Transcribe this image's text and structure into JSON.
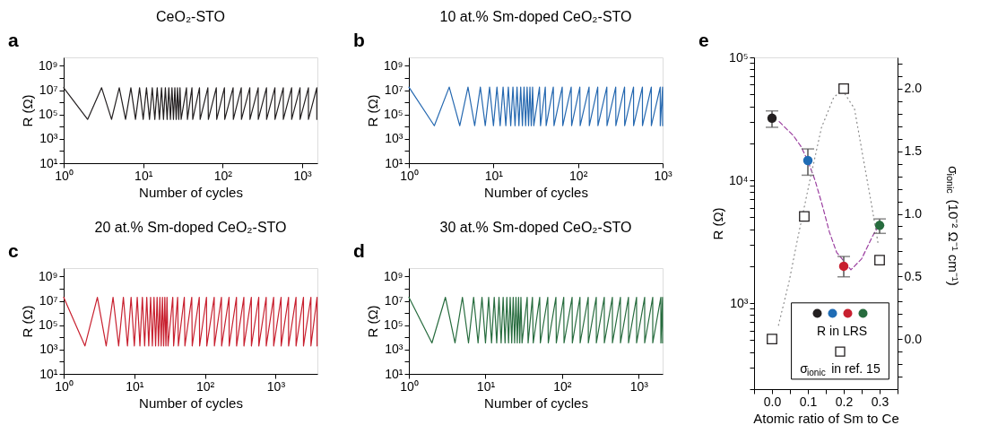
{
  "chart_data": [
    {
      "type": "line",
      "title": "CeO₂-STO",
      "xlabel": "Number of cycles",
      "ylabel": "R (Ω)",
      "annotations": [
        "a"
      ],
      "log": "xy",
      "grid": false,
      "xlim": [
        1,
        1550
      ],
      "ylim": [
        10,
        5000000000
      ],
      "xticks": [
        {
          "value": 1,
          "label": "10⁰"
        },
        {
          "value": 10,
          "label": "10¹"
        },
        {
          "value": 100,
          "label": "10²"
        },
        {
          "value": 1000,
          "label": "10³"
        }
      ],
      "yticks": [
        {
          "value": 10,
          "label": "10¹"
        },
        {
          "value": 100,
          "label": null
        },
        {
          "value": 1000,
          "label": "10³"
        },
        {
          "value": 10000,
          "label": null
        },
        {
          "value": 100000,
          "label": "10⁵"
        },
        {
          "value": 1000000,
          "label": null
        },
        {
          "value": 10000000,
          "label": "10⁷"
        },
        {
          "value": 100000000,
          "label": null
        },
        {
          "value": 1000000000,
          "label": "10⁹"
        }
      ],
      "color": "#231f20",
      "x": [
        1,
        2,
        3,
        4,
        5,
        6,
        7,
        8,
        9,
        10,
        11,
        12,
        13,
        14,
        15,
        16,
        17,
        18,
        19,
        20,
        21,
        22,
        23,
        24,
        25,
        26,
        27,
        28,
        29,
        30,
        35,
        36,
        41,
        42,
        51,
        52,
        65,
        66,
        83,
        84,
        105,
        106,
        135,
        136,
        171,
        172,
        219,
        220,
        279,
        280,
        355,
        356,
        453,
        454,
        577,
        578,
        735,
        736,
        937,
        938,
        1195,
        1196,
        1523,
        1524
      ],
      "values": [
        16000000,
        40000,
        16000000,
        40000,
        16000000,
        40000,
        16000000,
        40000,
        16000000,
        40000,
        16000000,
        40000,
        16000000,
        40000,
        16000000,
        40000,
        16000000,
        40000,
        16000000,
        40000,
        16000000,
        40000,
        16000000,
        40000,
        16000000,
        40000,
        16000000,
        40000,
        16000000,
        40000,
        16000000,
        40000,
        16000000,
        40000,
        16000000,
        40000,
        16000000,
        40000,
        16000000,
        40000,
        16000000,
        40000,
        16000000,
        40000,
        16000000,
        40000,
        16000000,
        40000,
        16000000,
        40000,
        16000000,
        40000,
        16000000,
        40000,
        16000000,
        40000,
        16000000,
        40000,
        16000000,
        40000,
        16000000,
        40000,
        16000000,
        40000
      ]
    },
    {
      "type": "line",
      "title": "10 at.% Sm-doped CeO₂-STO",
      "xlabel": "Number of cycles",
      "ylabel": "R (Ω)",
      "annotations": [
        "b"
      ],
      "log": "xy",
      "grid": false,
      "xlim": [
        1,
        1000
      ],
      "ylim": [
        10,
        5000000000
      ],
      "xticks": [
        {
          "value": 1,
          "label": "10⁰"
        },
        {
          "value": 10,
          "label": "10¹"
        },
        {
          "value": 100,
          "label": "10²"
        },
        {
          "value": 1000,
          "label": "10³"
        }
      ],
      "yticks": [
        {
          "value": 10,
          "label": "10¹"
        },
        {
          "value": 100,
          "label": null
        },
        {
          "value": 1000,
          "label": "10³"
        },
        {
          "value": 10000,
          "label": null
        },
        {
          "value": 100000,
          "label": "10⁵"
        },
        {
          "value": 1000000,
          "label": null
        },
        {
          "value": 10000000,
          "label": "10⁷"
        },
        {
          "value": 100000000,
          "label": null
        },
        {
          "value": 1000000000,
          "label": "10⁹"
        }
      ],
      "color": "#2568b0",
      "x": [
        1,
        2,
        3,
        4,
        5,
        6,
        7,
        8,
        9,
        10,
        11,
        12,
        13,
        14,
        15,
        16,
        17,
        18,
        19,
        20,
        21,
        22,
        23,
        24,
        25,
        26,
        27,
        28,
        29,
        30,
        35,
        36,
        41,
        42,
        51,
        52,
        65,
        66,
        83,
        84,
        105,
        106,
        135,
        136,
        171,
        172,
        219,
        220,
        279,
        280,
        355,
        356,
        453,
        454,
        577,
        578,
        735,
        736,
        937,
        938,
        999,
        1000
      ],
      "values": [
        18000000,
        12000,
        18000000,
        12000,
        18000000,
        12000,
        18000000,
        12000,
        18000000,
        12000,
        18000000,
        12000,
        18000000,
        12000,
        18000000,
        12000,
        18000000,
        12000,
        18000000,
        12000,
        18000000,
        12000,
        18000000,
        12000,
        18000000,
        12000,
        18000000,
        12000,
        18000000,
        12000,
        18000000,
        12000,
        18000000,
        12000,
        18000000,
        12000,
        18000000,
        12000,
        18000000,
        12000,
        18000000,
        12000,
        18000000,
        12000,
        18000000,
        12000,
        18000000,
        12000,
        18000000,
        12000,
        18000000,
        12000,
        18000000,
        12000,
        18000000,
        12000,
        18000000,
        12000,
        18000000,
        12000,
        18000000,
        12000
      ]
    },
    {
      "type": "line",
      "title": "20 at.% Sm-doped CeO₂-STO",
      "xlabel": "Number of cycles",
      "ylabel": "R (Ω)",
      "annotations": [
        "c"
      ],
      "log": "xy",
      "grid": false,
      "xlim": [
        1,
        3900
      ],
      "ylim": [
        10,
        5000000000
      ],
      "xticks": [
        {
          "value": 1,
          "label": "10⁰"
        },
        {
          "value": 10,
          "label": "10¹"
        },
        {
          "value": 100,
          "label": "10²"
        },
        {
          "value": 1000,
          "label": "10³"
        }
      ],
      "yticks": [
        {
          "value": 10,
          "label": "10¹"
        },
        {
          "value": 100,
          "label": null
        },
        {
          "value": 1000,
          "label": "10³"
        },
        {
          "value": 10000,
          "label": null
        },
        {
          "value": 100000,
          "label": "10⁵"
        },
        {
          "value": 1000000,
          "label": null
        },
        {
          "value": 10000000,
          "label": "10⁷"
        },
        {
          "value": 100000000,
          "label": null
        },
        {
          "value": 1000000000,
          "label": "10⁹"
        }
      ],
      "color": "#c8202f",
      "x": [
        1,
        2,
        3,
        4,
        5,
        6,
        7,
        8,
        9,
        10,
        11,
        12,
        13,
        14,
        15,
        16,
        17,
        18,
        19,
        20,
        21,
        22,
        23,
        24,
        25,
        26,
        27,
        28,
        29,
        30,
        35,
        36,
        41,
        42,
        51,
        52,
        65,
        66,
        83,
        84,
        105,
        106,
        135,
        136,
        171,
        172,
        219,
        220,
        279,
        280,
        355,
        356,
        453,
        454,
        577,
        578,
        735,
        736,
        937,
        938,
        1195,
        1196,
        1523,
        1524,
        1943,
        1944,
        2477,
        2478,
        3157,
        3158,
        3855,
        3856
      ],
      "values": [
        20000000,
        2000,
        20000000,
        2000,
        20000000,
        2000,
        20000000,
        2000,
        20000000,
        2000,
        20000000,
        2000,
        20000000,
        2000,
        20000000,
        2000,
        20000000,
        2000,
        20000000,
        2000,
        20000000,
        2000,
        20000000,
        2000,
        20000000,
        2000,
        20000000,
        2000,
        20000000,
        2000,
        20000000,
        2000,
        20000000,
        2000,
        20000000,
        2000,
        20000000,
        2000,
        20000000,
        2000,
        20000000,
        2000,
        20000000,
        2000,
        20000000,
        2000,
        20000000,
        2000,
        20000000,
        2000,
        20000000,
        2000,
        20000000,
        2000,
        20000000,
        2000,
        20000000,
        2000,
        20000000,
        2000,
        20000000,
        2000,
        20000000,
        2000,
        20000000,
        2000,
        20000000,
        2000,
        20000000,
        2000,
        20000000,
        2000
      ]
    },
    {
      "type": "line",
      "title": "30 at.% Sm-doped CeO₂-STO",
      "xlabel": "Number of cycles",
      "ylabel": "R (Ω)",
      "annotations": [
        "d"
      ],
      "log": "xy",
      "grid": false,
      "xlim": [
        1,
        2050
      ],
      "ylim": [
        10,
        5000000000
      ],
      "xticks": [
        {
          "value": 1,
          "label": "10⁰"
        },
        {
          "value": 10,
          "label": "10¹"
        },
        {
          "value": 100,
          "label": "10²"
        },
        {
          "value": 1000,
          "label": "10³"
        }
      ],
      "yticks": [
        {
          "value": 10,
          "label": "10¹"
        },
        {
          "value": 100,
          "label": null
        },
        {
          "value": 1000,
          "label": "10³"
        },
        {
          "value": 10000,
          "label": null
        },
        {
          "value": 100000,
          "label": "10⁵"
        },
        {
          "value": 1000000,
          "label": null
        },
        {
          "value": 10000000,
          "label": "10⁷"
        },
        {
          "value": 100000000,
          "label": null
        },
        {
          "value": 1000000000,
          "label": "10⁹"
        }
      ],
      "color": "#276c3e",
      "x": [
        1,
        2,
        3,
        4,
        5,
        6,
        7,
        8,
        9,
        10,
        11,
        12,
        13,
        14,
        15,
        16,
        17,
        18,
        19,
        20,
        21,
        22,
        23,
        24,
        25,
        26,
        27,
        28,
        29,
        30,
        35,
        36,
        41,
        42,
        51,
        52,
        65,
        66,
        83,
        84,
        105,
        106,
        135,
        136,
        171,
        172,
        219,
        220,
        279,
        280,
        355,
        356,
        453,
        454,
        577,
        578,
        735,
        736,
        937,
        938,
        1195,
        1196,
        1523,
        1524,
        1943,
        1944,
        2045,
        2046
      ],
      "values": [
        20000000,
        3500,
        20000000,
        3500,
        20000000,
        3500,
        20000000,
        3500,
        20000000,
        3500,
        20000000,
        3500,
        20000000,
        3500,
        20000000,
        3500,
        20000000,
        3500,
        20000000,
        3500,
        20000000,
        3500,
        20000000,
        3500,
        20000000,
        3500,
        20000000,
        3500,
        20000000,
        3500,
        20000000,
        3500,
        20000000,
        3500,
        20000000,
        3500,
        20000000,
        3500,
        20000000,
        3500,
        20000000,
        3500,
        20000000,
        3500,
        20000000,
        3500,
        20000000,
        3500,
        20000000,
        3500,
        20000000,
        3500,
        20000000,
        3500,
        20000000,
        3500,
        20000000,
        3500,
        20000000,
        3500,
        20000000,
        3500,
        20000000,
        3500,
        20000000,
        3500,
        20000000,
        3500
      ]
    },
    {
      "type": "scatter",
      "xlabel": "Atomic ratio of Sm to Ce",
      "ylabel": "R (Ω)",
      "y2label": "σ$_{ionic}$ (10⁻² Ω⁻¹ cm⁻¹)",
      "annotations": [
        "e"
      ],
      "log": "y",
      "grid": false,
      "legend": "bottom",
      "xlim": [
        -0.05,
        0.35
      ],
      "ylim": [
        200,
        100000
      ],
      "y2lim": [
        -0.4,
        2.25
      ],
      "xticks": [
        {
          "value": -0.05,
          "label": null
        },
        {
          "value": 0,
          "label": "0.0"
        },
        {
          "value": 0.05,
          "label": null
        },
        {
          "value": 0.1,
          "label": "0.1"
        },
        {
          "value": 0.15,
          "label": null
        },
        {
          "value": 0.2,
          "label": "0.2"
        },
        {
          "value": 0.25,
          "label": null
        },
        {
          "value": 0.3,
          "label": "0.3"
        },
        {
          "value": 0.35,
          "label": null
        }
      ],
      "yticks": [
        {
          "value": 200,
          "label": null
        },
        {
          "value": 300,
          "label": null
        },
        {
          "value": 400,
          "label": null
        },
        {
          "value": 500,
          "label": null
        },
        {
          "value": 600,
          "label": null
        },
        {
          "value": 700,
          "label": null
        },
        {
          "value": 800,
          "label": null
        },
        {
          "value": 900,
          "label": null
        },
        {
          "value": 1000,
          "label": "10³"
        },
        {
          "value": 2000,
          "label": null
        },
        {
          "value": 3000,
          "label": null
        },
        {
          "value": 4000,
          "label": null
        },
        {
          "value": 5000,
          "label": null
        },
        {
          "value": 6000,
          "label": null
        },
        {
          "value": 7000,
          "label": null
        },
        {
          "value": 8000,
          "label": null
        },
        {
          "value": 9000,
          "label": null
        },
        {
          "value": 10000,
          "label": "10⁴"
        },
        {
          "value": 20000,
          "label": null
        },
        {
          "value": 30000,
          "label": null
        },
        {
          "value": 40000,
          "label": null
        },
        {
          "value": 50000,
          "label": null
        },
        {
          "value": 60000,
          "label": null
        },
        {
          "value": 70000,
          "label": null
        },
        {
          "value": 80000,
          "label": null
        },
        {
          "value": 90000,
          "label": null
        },
        {
          "value": 100000,
          "label": "10⁵"
        }
      ],
      "y2ticks": [
        {
          "value": -0.3,
          "label": null
        },
        {
          "value": -0.2,
          "label": null
        },
        {
          "value": -0.1,
          "label": null
        },
        {
          "value": 0,
          "label": "0.0"
        },
        {
          "value": 0.1,
          "label": null
        },
        {
          "value": 0.2,
          "label": null
        },
        {
          "value": 0.3,
          "label": null
        },
        {
          "value": 0.4,
          "label": null
        },
        {
          "value": 0.5,
          "label": "0.5"
        },
        {
          "value": 0.6,
          "label": null
        },
        {
          "value": 0.7,
          "label": null
        },
        {
          "value": 0.8,
          "label": null
        },
        {
          "value": 0.9,
          "label": null
        },
        {
          "value": 1,
          "label": "1.0"
        },
        {
          "value": 1.1,
          "label": null
        },
        {
          "value": 1.2,
          "label": null
        },
        {
          "value": 1.3,
          "label": null
        },
        {
          "value": 1.4,
          "label": null
        },
        {
          "value": 1.5,
          "label": "1.5"
        },
        {
          "value": 1.6,
          "label": null
        },
        {
          "value": 1.7,
          "label": null
        },
        {
          "value": 1.8,
          "label": null
        },
        {
          "value": 1.9,
          "label": null
        },
        {
          "value": 2,
          "label": "2.0"
        },
        {
          "value": 2.1,
          "label": null
        },
        {
          "value": 2.2,
          "label": null
        }
      ],
      "series": [
        {
          "name": "R in LRS",
          "type": "scatter",
          "marker": "circle",
          "x": [
            0,
            0.1,
            0.2,
            0.3
          ],
          "values": [
            32000,
            14500,
            2000,
            4300
          ],
          "colors": [
            "#231f20",
            "#1f6cb5",
            "#c8202f",
            "#276c3e"
          ],
          "errors": [
            [
              27000,
              36700
            ],
            [
              11000,
              18000
            ],
            [
              1640,
              2400
            ],
            [
              3700,
              4850
            ]
          ]
        },
        {
          "name": "σ$_{ionic}$ in ref. 15",
          "type": "scatter",
          "marker": "square",
          "axis": "y2",
          "color": "#231f20",
          "x": [
            0,
            0.09,
            0.2,
            0.3
          ],
          "values": [
            0.0,
            0.98,
            2.0,
            0.63
          ]
        },
        {
          "type": "line",
          "line_style": "dashed",
          "color": "#9b3fa0",
          "x": [
            0.02,
            0.06,
            0.08,
            0.1,
            0.12,
            0.14,
            0.16,
            0.18,
            0.22,
            0.25,
            0.28,
            0.3
          ],
          "values": [
            30000,
            23000,
            19000,
            14400,
            10000,
            6300,
            3800,
            2600,
            1870,
            2300,
            3500,
            4400
          ]
        },
        {
          "type": "line",
          "line_style": "dotted",
          "axis": "y2",
          "color": "#888888",
          "x": [
            0.018,
            0.047,
            0.072,
            0.105,
            0.138,
            0.172,
            0.196,
            0.23,
            0.254,
            0.279,
            0.296
          ],
          "values": [
            0.11,
            0.45,
            0.81,
            1.26,
            1.69,
            1.93,
            1.99,
            1.84,
            1.45,
            1.05,
            0.76
          ]
        }
      ]
    }
  ]
}
